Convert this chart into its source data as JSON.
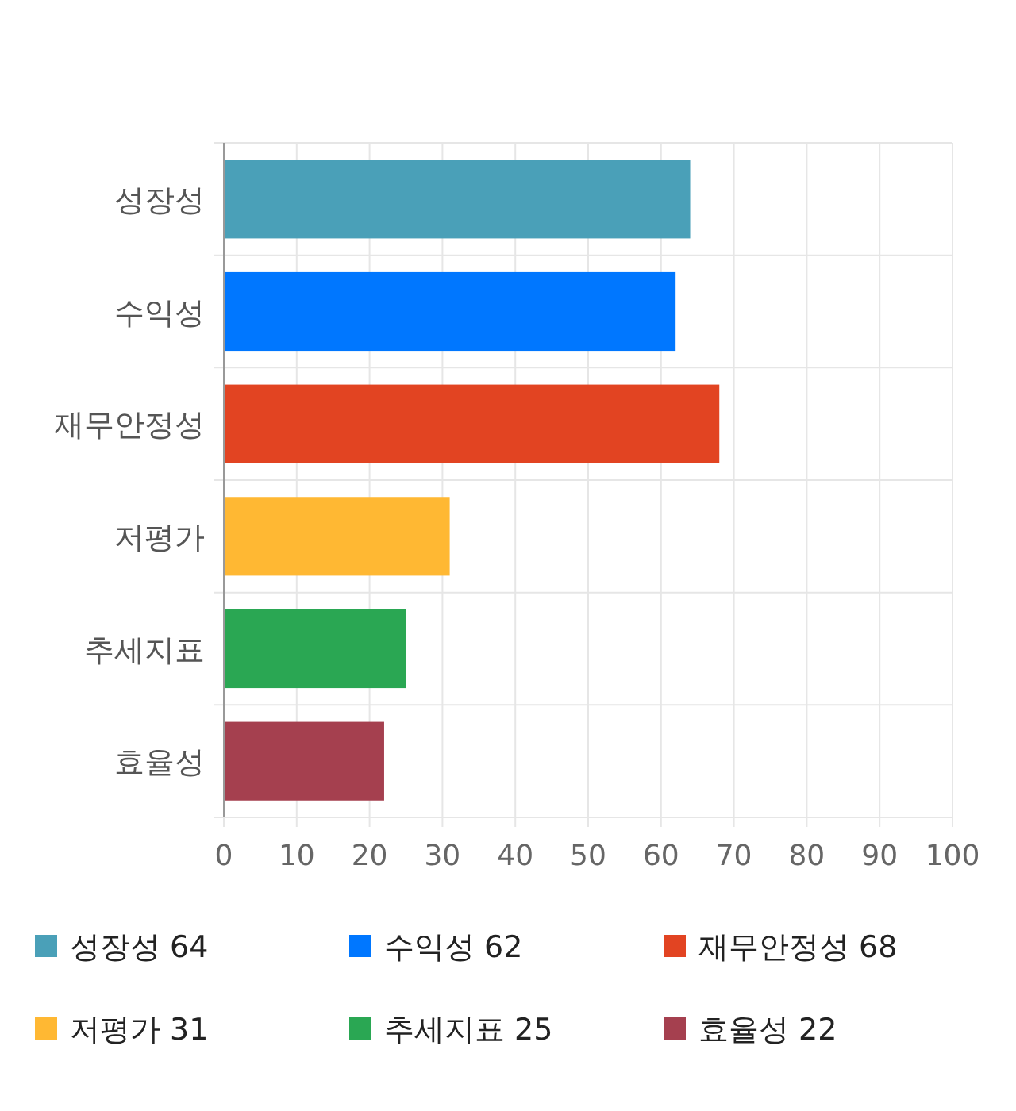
{
  "chart_data": {
    "type": "bar",
    "orientation": "horizontal",
    "stacked": true,
    "categories": [
      "성장성",
      "수익성",
      "재무안정성",
      "저평가",
      "추세지표",
      "효율성"
    ],
    "series": [
      {
        "name": "성장성 64",
        "color": "#4aa0b8",
        "values": [
          64,
          null,
          null,
          null,
          null,
          null
        ]
      },
      {
        "name": "수익성 62",
        "color": "#0077ff",
        "values": [
          null,
          62,
          null,
          null,
          null,
          null
        ]
      },
      {
        "name": "재무안정성 68",
        "color": "#e24422",
        "values": [
          null,
          null,
          68,
          null,
          null,
          null
        ]
      },
      {
        "name": "저평가 31",
        "color": "#ffb833",
        "values": [
          null,
          null,
          null,
          31,
          null,
          null
        ]
      },
      {
        "name": "추세지표 25",
        "color": "#2aa753",
        "values": [
          null,
          null,
          null,
          null,
          25,
          null
        ]
      },
      {
        "name": "효율성 22",
        "color": "#a5404f",
        "values": [
          null,
          null,
          null,
          null,
          null,
          22
        ]
      }
    ],
    "xlim": [
      0,
      100
    ],
    "xticks": [
      0,
      10,
      20,
      30,
      40,
      50,
      60,
      70,
      80,
      90,
      100
    ],
    "grid": true,
    "legend": "bottom"
  }
}
